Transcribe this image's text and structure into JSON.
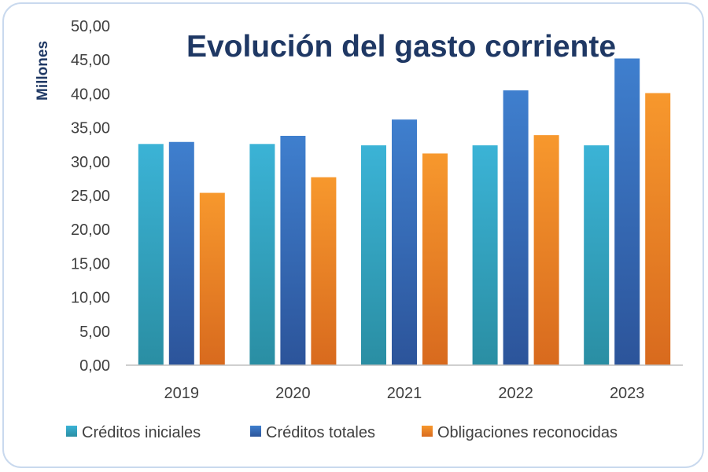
{
  "chart_data": {
    "type": "bar",
    "title": "Evolución del gasto corriente",
    "ylabel": "Millones",
    "xlabel": "",
    "ylim": [
      0,
      50
    ],
    "yticks": [
      "0,00",
      "5,00",
      "10,00",
      "15,00",
      "20,00",
      "25,00",
      "30,00",
      "35,00",
      "40,00",
      "45,00",
      "50,00"
    ],
    "ytick_values": [
      0,
      5,
      10,
      15,
      20,
      25,
      30,
      35,
      40,
      45,
      50
    ],
    "categories": [
      "2019",
      "2020",
      "2021",
      "2022",
      "2023"
    ],
    "series": [
      {
        "name": "Créditos iniciales",
        "values": [
          32.6,
          32.6,
          32.4,
          32.4,
          32.4
        ]
      },
      {
        "name": "Créditos totales",
        "values": [
          32.9,
          33.8,
          36.2,
          40.5,
          45.2
        ]
      },
      {
        "name": "Obligaciones reconocidas",
        "values": [
          25.4,
          27.7,
          31.2,
          33.9,
          40.1
        ]
      }
    ],
    "colors": {
      "series_top": [
        "#3bb3d6",
        "#3f7fce",
        "#f7982d"
      ],
      "series_bottom": [
        "#2a8ea3",
        "#2c549a",
        "#d86a1e"
      ],
      "axis": "#bfbfbf"
    },
    "legend": "bottom"
  }
}
